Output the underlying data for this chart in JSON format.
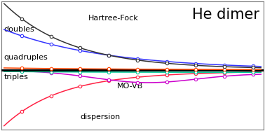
{
  "title": "He dimer",
  "labels": {
    "doubles": "doubles",
    "quadruples": "quadruples",
    "triples": "triples",
    "hartree_fock": "Hartree-Fock",
    "mo_vb": "MO-VB",
    "dispersion": "dispersion"
  },
  "colors": {
    "doubles": "#3333ff",
    "quadruples": "#ff4400",
    "zero_line": "#000000",
    "triples": "#00cc99",
    "hartree_fock": "#333333",
    "mo_vb": "#cc00cc",
    "dispersion": "#ff2244"
  },
  "background": "#ffffff",
  "border_color": "#777777",
  "title_fontsize": 15,
  "label_fontsize": 8.0
}
